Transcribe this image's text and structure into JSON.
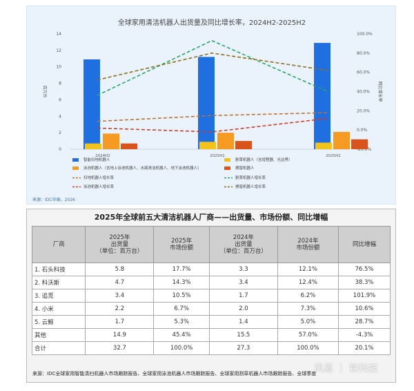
{
  "chart_data": {
    "type": "bar",
    "title": "全球家用清洁机器人出货量及同比增长率，2024H2-2025H2",
    "categories": [
      "2024H2",
      "2025H1",
      "2025H2"
    ],
    "ylabel_left": "百万台",
    "ylabel_right": "同比增长率",
    "ylim_left": [
      0,
      14
    ],
    "ylim_right": [
      -20,
      100
    ],
    "yticks_left": [
      "0",
      "2",
      "4",
      "6",
      "8",
      "10",
      "12",
      "14"
    ],
    "yticks_right": [
      "-20.0%",
      "0.0%",
      "20.0%",
      "40.0%",
      "60.0%",
      "80.0%",
      "100.0%"
    ],
    "series": [
      {
        "name": "智能扫地机器人",
        "kind": "bar",
        "color": "#1f6fe0",
        "values": [
          10.9,
          11.2,
          12.9
        ]
      },
      {
        "name": "割草机器人（含增程器、光边界）",
        "kind": "bar",
        "color": "#f3c21b",
        "values": [
          0.7,
          0.9,
          0.8
        ]
      },
      {
        "name": "泳池机器人（含地上泳池机器人、水面清洁机器人、地下泳池机器人）",
        "kind": "bar",
        "color": "#f59a23",
        "values": [
          1.9,
          2.0,
          2.1
        ]
      },
      {
        "name": "擦窗机器人",
        "kind": "bar",
        "color": "#d9541c",
        "values": [
          0.7,
          1.0,
          1.2
        ]
      },
      {
        "name": "扫地机器人增长率",
        "kind": "line",
        "color": "#c0702a",
        "values": [
          9,
          15,
          18
        ]
      },
      {
        "name": "割草机器人增长率",
        "kind": "line",
        "color": "#2aa66b",
        "values": [
          36,
          93,
          40
        ]
      },
      {
        "name": "泳池机器人增长率",
        "kind": "line",
        "color": "#d23a2a",
        "values": [
          2,
          -2,
          12
        ]
      },
      {
        "name": "擦窗机器人增长率",
        "kind": "line",
        "color": "#8a6d1e",
        "values": [
          52,
          80,
          62
        ]
      }
    ],
    "legend_placement": "bottom"
  },
  "chart_source": "来源：IDC中国，2026",
  "table": {
    "title": "2025年全球前五大清洁机器人厂商——出货量、市场份额、同比增幅",
    "headers": [
      [
        "厂商"
      ],
      [
        "2025年",
        "出货量",
        "（单位：百万台）"
      ],
      [
        "2025年",
        "市场份额"
      ],
      [
        "2024年",
        "出货量",
        "（单位：百万台）"
      ],
      [
        "2024年",
        "市场份额"
      ],
      [
        "同比增幅"
      ]
    ],
    "rows": [
      [
        "1. 石头科技",
        "5.8",
        "17.7%",
        "3.3",
        "12.1%",
        "76.5%"
      ],
      [
        "2. 科沃斯",
        "4.7",
        "14.3%",
        "3.4",
        "12.4%",
        "38.3%"
      ],
      [
        "3. 追觅",
        "3.4",
        "10.5%",
        "1.7",
        "6.2%",
        "101.9%"
      ],
      [
        "4. 小米",
        "2.2",
        "6.7%",
        "2.0",
        "7.3%",
        "10.6%"
      ],
      [
        "5. 云鲸",
        "1.7",
        "5.3%",
        "1.4",
        "5.0%",
        "28.7%"
      ],
      [
        "其他",
        "14.9",
        "45.4%",
        "15.5",
        "57.0%",
        "-4.3%"
      ],
      [
        "合计",
        "32.7",
        "100.0%",
        "27.3",
        "100.0%",
        "20.1%"
      ]
    ],
    "source": "来源：IDC全球家用智能清扫机器人市场跟踪报告、全球家用泳池机器人市场跟踪报告、全球家用割草机器人市场跟踪报告、全球季度"
  },
  "watermark": "风易 ｜ 铁科技"
}
